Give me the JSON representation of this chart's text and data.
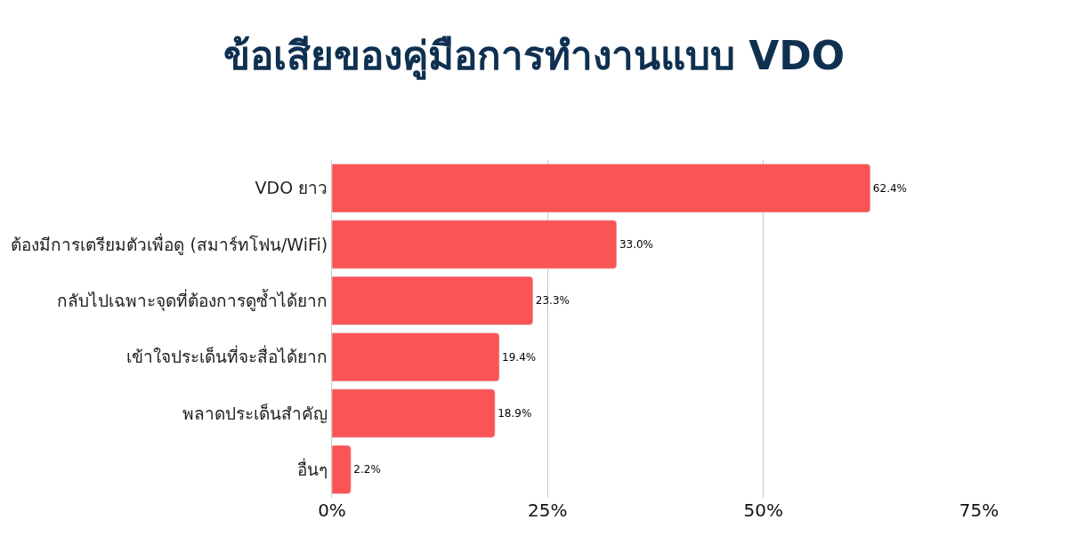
{
  "chart_data": {
    "type": "bar",
    "orientation": "horizontal",
    "title": "ข้อเสียของคู่มือการทำงานแบบ VDO",
    "categories": [
      "VDO ยาว",
      "ต้องมีการเตรียมตัวเพื่อดู (สมาร์ทโฟน/WiFi)",
      "กลับไปเฉพาะจุดที่ต้องการดูซ้ำได้ยาก",
      "เข้าใจประเด็นที่จะสื่อได้ยาก",
      "พลาดประเด็นสำคัญ",
      "อื่นๆ"
    ],
    "values": [
      62.4,
      33.0,
      23.3,
      19.4,
      18.9,
      2.2
    ],
    "value_labels": [
      "62.4%",
      "33.0%",
      "23.3%",
      "19.4%",
      "18.9%",
      "2.2%"
    ],
    "color": "#fa5456",
    "xlim": [
      0,
      75
    ],
    "xticks": [
      {
        "value": 0,
        "label": "0%"
      },
      {
        "value": 25,
        "label": "25%"
      },
      {
        "value": 50,
        "label": "50%"
      },
      {
        "value": 75,
        "label": "75%"
      }
    ],
    "grid": "x",
    "legend": false
  }
}
